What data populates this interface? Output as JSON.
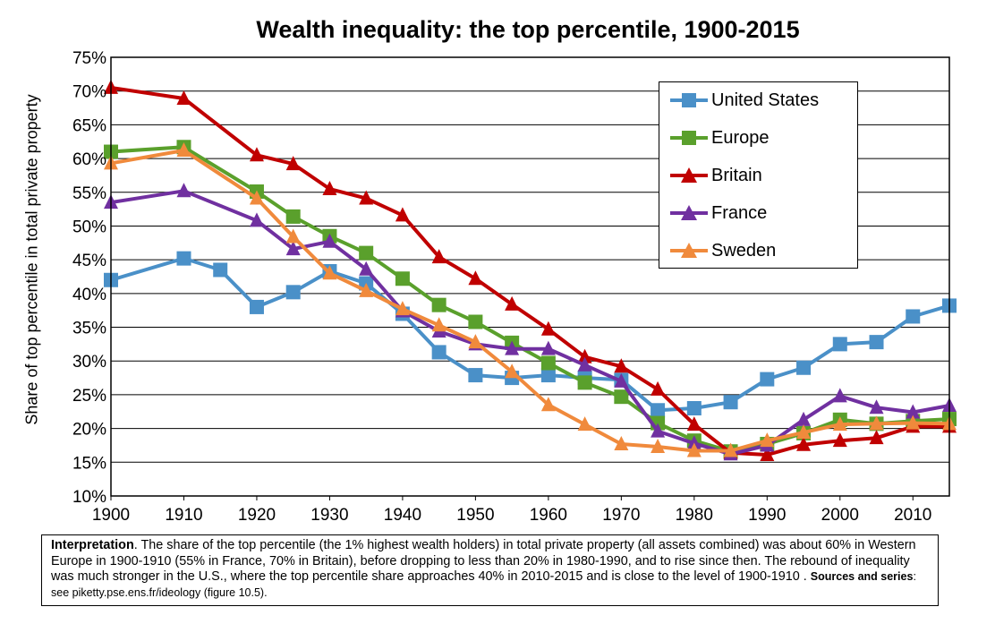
{
  "chart_data": {
    "type": "line",
    "title": "Wealth inequality: the top percentile, 1900-2015",
    "xlabel": "",
    "ylabel": "Share of top percentile in total private property",
    "xlim": [
      1900,
      2015
    ],
    "ylim": [
      0.1,
      0.75
    ],
    "x_ticks": [
      1900,
      1910,
      1920,
      1930,
      1940,
      1950,
      1960,
      1970,
      1980,
      1990,
      2000,
      2010
    ],
    "x_tick_labels": [
      "1900",
      "1910",
      "1920",
      "1930",
      "1940",
      "1950",
      "1960",
      "1970",
      "1980",
      "1990",
      "2000",
      "2010"
    ],
    "y_ticks": [
      0.1,
      0.15,
      0.2,
      0.25,
      0.3,
      0.35,
      0.4,
      0.45,
      0.5,
      0.55,
      0.6,
      0.65,
      0.7,
      0.75
    ],
    "y_tick_labels": [
      "10%",
      "15%",
      "20%",
      "25%",
      "30%",
      "35%",
      "40%",
      "45%",
      "50%",
      "55%",
      "60%",
      "65%",
      "70%",
      "75%"
    ],
    "grid": "horizontal",
    "legend_position": "top-right",
    "series": [
      {
        "name": "United States",
        "color": "#4a90c8",
        "marker": "square",
        "x": [
          1900,
          1910,
          1915,
          1920,
          1925,
          1930,
          1935,
          1940,
          1945,
          1950,
          1955,
          1960,
          1965,
          1970,
          1975,
          1980,
          1985,
          1990,
          1995,
          2000,
          2005,
          2010,
          2015
        ],
        "values": [
          0.42,
          0.452,
          0.435,
          0.38,
          0.402,
          0.433,
          0.415,
          0.37,
          0.313,
          0.279,
          0.275,
          0.279,
          0.275,
          0.272,
          0.227,
          0.23,
          0.239,
          0.273,
          0.29,
          0.325,
          0.328,
          0.366,
          0.382
        ]
      },
      {
        "name": "Europe",
        "color": "#5aa02c",
        "marker": "square",
        "x": [
          1900,
          1910,
          1920,
          1925,
          1930,
          1935,
          1940,
          1945,
          1950,
          1955,
          1960,
          1965,
          1970,
          1975,
          1980,
          1985,
          1990,
          1995,
          2000,
          2005,
          2010,
          2015
        ],
        "values": [
          0.61,
          0.617,
          0.551,
          0.514,
          0.485,
          0.46,
          0.422,
          0.383,
          0.358,
          0.327,
          0.297,
          0.268,
          0.247,
          0.208,
          0.182,
          0.166,
          0.177,
          0.193,
          0.213,
          0.207,
          0.211,
          0.214
        ]
      },
      {
        "name": "Britain",
        "color": "#c00000",
        "marker": "triangle",
        "x": [
          1900,
          1910,
          1920,
          1925,
          1930,
          1935,
          1940,
          1945,
          1950,
          1955,
          1960,
          1965,
          1970,
          1975,
          1980,
          1985,
          1990,
          1995,
          2000,
          2005,
          2010,
          2015
        ],
        "values": [
          0.705,
          0.689,
          0.605,
          0.592,
          0.555,
          0.541,
          0.516,
          0.454,
          0.422,
          0.384,
          0.347,
          0.306,
          0.292,
          0.258,
          0.206,
          0.164,
          0.161,
          0.176,
          0.182,
          0.186,
          0.203,
          0.203
        ]
      },
      {
        "name": "France",
        "color": "#7030a0",
        "marker": "triangle",
        "x": [
          1900,
          1910,
          1920,
          1925,
          1930,
          1935,
          1940,
          1945,
          1950,
          1955,
          1960,
          1965,
          1970,
          1975,
          1980,
          1985,
          1990,
          1995,
          2000,
          2005,
          2010,
          2015
        ],
        "values": [
          0.535,
          0.552,
          0.508,
          0.466,
          0.477,
          0.436,
          0.374,
          0.344,
          0.325,
          0.318,
          0.318,
          0.294,
          0.27,
          0.196,
          0.178,
          0.162,
          0.175,
          0.213,
          0.248,
          0.231,
          0.224,
          0.234
        ]
      },
      {
        "name": "Sweden",
        "color": "#f08a3c",
        "marker": "triangle",
        "x": [
          1900,
          1910,
          1920,
          1925,
          1930,
          1935,
          1940,
          1945,
          1950,
          1955,
          1960,
          1965,
          1970,
          1975,
          1980,
          1985,
          1990,
          1995,
          2000,
          2005,
          2010,
          2015
        ],
        "values": [
          0.593,
          0.612,
          0.541,
          0.484,
          0.43,
          0.404,
          0.377,
          0.353,
          0.328,
          0.284,
          0.235,
          0.206,
          0.177,
          0.173,
          0.167,
          0.167,
          0.182,
          0.194,
          0.206,
          0.207,
          0.208,
          0.207
        ]
      }
    ]
  },
  "note": {
    "interpretation_label": "Interpretation",
    "text": ". The share of the top percentile (the 1% highest wealth holders) in total private property (all assets combined) was about 60% in Western Europe in 1900-1910 (55% in France, 70% in Britain), before dropping to less than 20% in 1980-1990, and to rise since then. The rebound of inequality was much stronger in the U.S., where the top percentile share approaches 40% in 2010-2015 and is close to the level of 1900-1910 . ",
    "sources_label": "Sources and series",
    "sources_text": ": see piketty.pse.ens.fr/ideology (figure 10.5)."
  }
}
